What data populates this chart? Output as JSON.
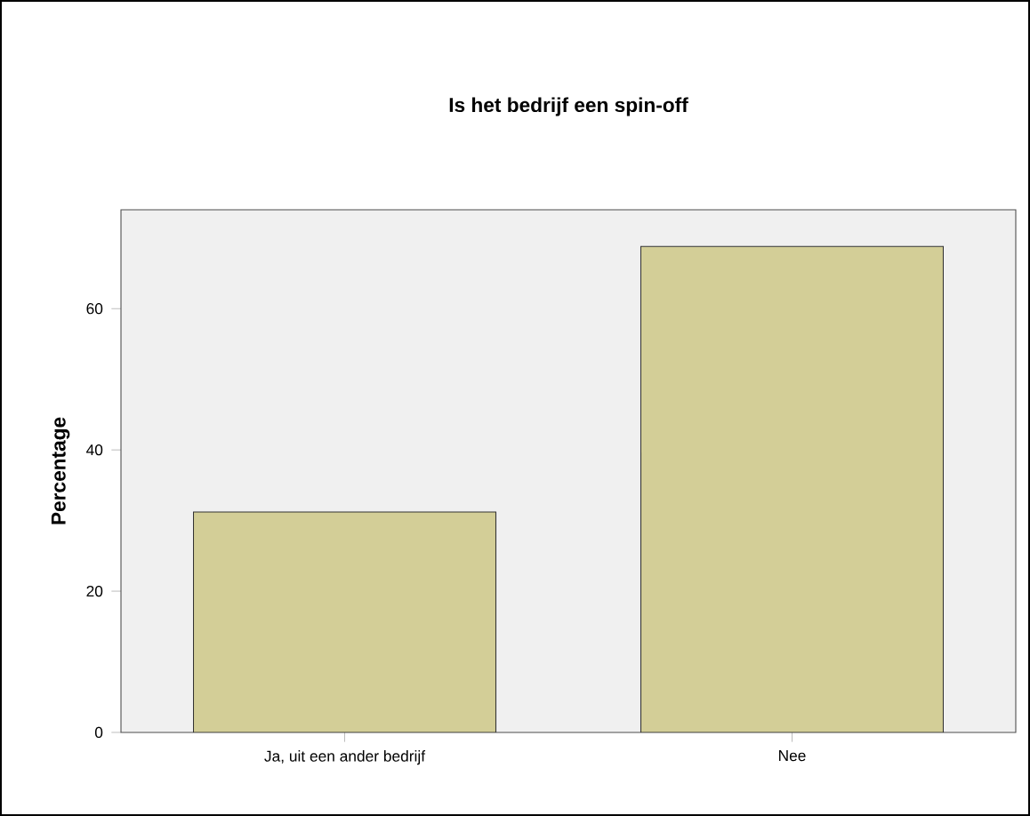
{
  "chart_data": {
    "type": "bar",
    "title": "Is het bedrijf een spin-off",
    "ylabel": "Percentage",
    "categories": [
      "Ja, uit een ander bedrijf",
      "Nee"
    ],
    "values": [
      31.2,
      68.8
    ],
    "color": "#d3ce97",
    "ylim": [
      0,
      74
    ],
    "yticks": [
      0,
      20,
      40,
      60
    ]
  }
}
